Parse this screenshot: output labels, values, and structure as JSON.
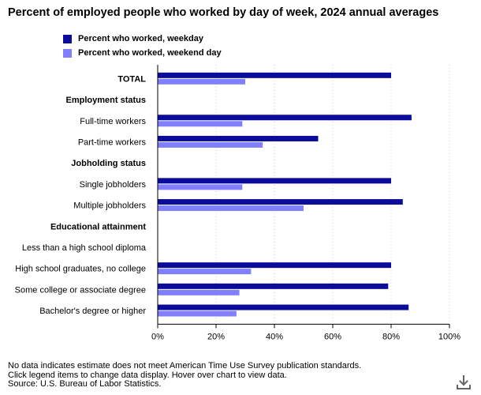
{
  "title": "Percent of employed people who worked by day of week, 2024 annual averages",
  "colors": {
    "weekday": "#0c0c9a",
    "weekend": "#8080ff",
    "grid": "#c8c8c8",
    "axis": "#000000"
  },
  "legend": [
    {
      "label": "Percent who worked, weekday",
      "color": "#0c0c9a"
    },
    {
      "label": "Percent who worked, weekend day",
      "color": "#8080ff"
    }
  ],
  "chart_data": {
    "type": "bar",
    "orientation": "horizontal",
    "xlim": [
      0,
      100
    ],
    "xticks": [
      "0%",
      "20%",
      "40%",
      "60%",
      "80%",
      "100%"
    ],
    "grid": "dotted vertical",
    "legend_position": "top-left",
    "categories": [
      {
        "label": "TOTAL",
        "bold": true,
        "weekday": 80,
        "weekend": 30
      },
      {
        "label": "Employment status",
        "bold": true,
        "weekday": null,
        "weekend": null
      },
      {
        "label": "Full-time workers",
        "bold": false,
        "weekday": 87,
        "weekend": 29
      },
      {
        "label": "Part-time workers",
        "bold": false,
        "weekday": 55,
        "weekend": 36
      },
      {
        "label": "Jobholding status",
        "bold": true,
        "weekday": null,
        "weekend": null
      },
      {
        "label": "Single jobholders",
        "bold": false,
        "weekday": 80,
        "weekend": 29
      },
      {
        "label": "Multiple jobholders",
        "bold": false,
        "weekday": 84,
        "weekend": 50
      },
      {
        "label": "Educational attainment",
        "bold": true,
        "weekday": null,
        "weekend": null
      },
      {
        "label": "Less than a high school diploma",
        "bold": false,
        "weekday": null,
        "weekend": null
      },
      {
        "label": "High school graduates, no college",
        "bold": false,
        "weekday": 80,
        "weekend": 32
      },
      {
        "label": "Some college or associate degree",
        "bold": false,
        "weekday": 79,
        "weekend": 28
      },
      {
        "label": "Bachelor's degree or higher",
        "bold": false,
        "weekday": 86,
        "weekend": 27
      }
    ],
    "series": [
      {
        "name": "Percent who worked, weekday",
        "key": "weekday"
      },
      {
        "name": "Percent who worked, weekend day",
        "key": "weekend"
      }
    ]
  },
  "footer": {
    "line1": "No data indicates estimate does not meet American Time Use Survey publication standards.",
    "line2": "Click legend items to change data display. Hover over chart to view data.",
    "line3": "Source: U.S. Bureau of Labor Statistics."
  },
  "download_icon": "download-icon"
}
